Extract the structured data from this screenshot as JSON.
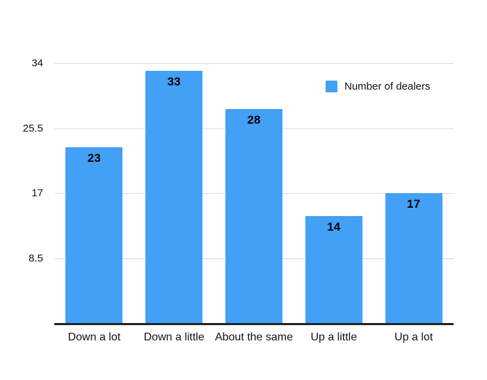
{
  "chart_data": {
    "type": "bar",
    "title": "",
    "xlabel": "",
    "ylabel": "",
    "categories": [
      "Down a lot",
      "Down a little",
      "About the same",
      "Up a little",
      "Up a lot"
    ],
    "series": [
      {
        "name": "Number of dealers",
        "values": [
          23,
          33,
          28,
          14,
          17
        ]
      }
    ],
    "value_labels": [
      "23",
      "33",
      "28",
      "14",
      "17"
    ],
    "ylim": [
      0,
      34
    ],
    "yticks": [
      8.5,
      17,
      25.5,
      34
    ],
    "ytick_labels": [
      "8.5",
      "17",
      "25.5",
      "34"
    ],
    "grid": "horizontal-only",
    "legend_position": "top-right-inside",
    "colors": {
      "bar": "#42a0f5",
      "gridline": "#d9d9d9",
      "axis_line": "#222222",
      "value_label": "#000000",
      "tick_label": "#111111"
    }
  },
  "legend": {
    "label": "Number of dealers",
    "swatch_color": "#42a0f5"
  }
}
